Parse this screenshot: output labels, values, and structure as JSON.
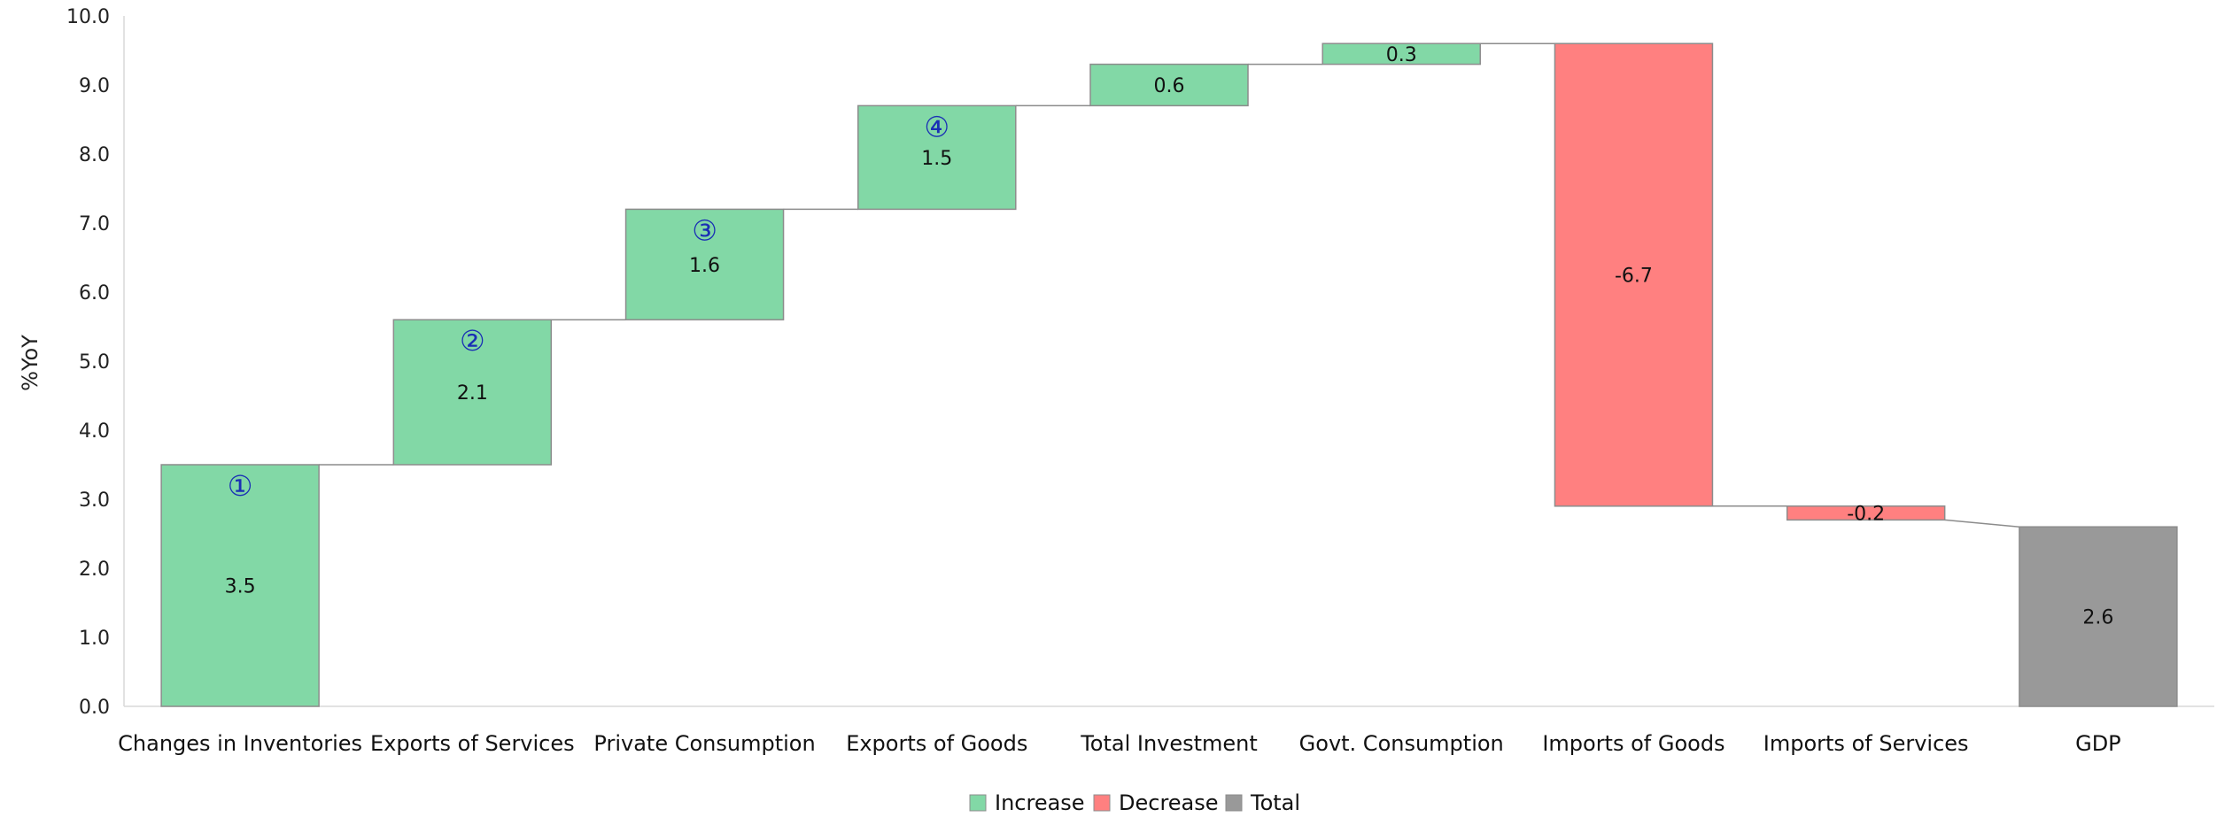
{
  "chart_data": {
    "type": "waterfall",
    "ylabel": "%YoY",
    "ylim": [
      0,
      10
    ],
    "ytick_step": 1,
    "yticks": [
      "0.0",
      "1.0",
      "2.0",
      "3.0",
      "4.0",
      "5.0",
      "6.0",
      "7.0",
      "8.0",
      "9.0",
      "10.0"
    ],
    "grid": false,
    "legend": {
      "placement": "bottom-center",
      "entries": [
        {
          "name": "Increase",
          "color": "#82d8a6"
        },
        {
          "name": "Decrease",
          "color": "#ff8080"
        },
        {
          "name": "Total",
          "color": "#999999"
        }
      ]
    },
    "categories": [
      "Changes in Inventories",
      "Exports of Services",
      "Private Consumption",
      "Exports of Goods",
      "Total Investment",
      "Govt. Consumption",
      "Imports of Goods",
      "Imports of Services",
      "GDP"
    ],
    "values": [
      3.5,
      2.1,
      1.6,
      1.5,
      0.6,
      0.3,
      -6.7,
      -0.2,
      2.6
    ],
    "data_labels": [
      "3.5",
      "2.1",
      "1.6",
      "1.5",
      "0.6",
      "0.3",
      "-6.7",
      "-0.2",
      "2.6"
    ],
    "kinds": [
      "increase",
      "increase",
      "increase",
      "increase",
      "increase",
      "increase",
      "decrease",
      "decrease",
      "total"
    ],
    "annotations": [
      {
        "category_index": 0,
        "text": "①"
      },
      {
        "category_index": 1,
        "text": "②"
      },
      {
        "category_index": 2,
        "text": "③"
      },
      {
        "category_index": 3,
        "text": "④"
      }
    ]
  }
}
